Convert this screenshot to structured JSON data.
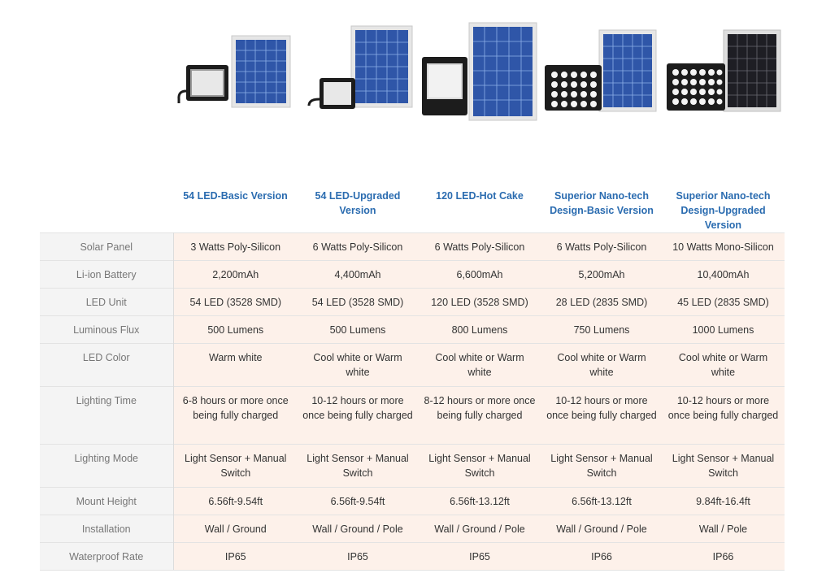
{
  "products": [
    {
      "name": "54-led-basic-product-image"
    },
    {
      "name": "54-led-upgraded-product-image"
    },
    {
      "name": "120-led-hot-cake-product-image"
    },
    {
      "name": "nano-tech-basic-product-image"
    },
    {
      "name": "nano-tech-upgraded-product-image"
    }
  ],
  "table": {
    "header_blank": "",
    "columns": [
      {
        "line1": "54 LED-Basic Version",
        "line2": ""
      },
      {
        "line1": "54 LED-Upgraded",
        "line2": "Version"
      },
      {
        "line1": "120 LED-Hot Cake",
        "line2": ""
      },
      {
        "line1": "Superior Nano-tech",
        "line2": "Design-Basic Version"
      },
      {
        "line1": "Superior Nano-tech",
        "line2": "Design-Upgraded Version"
      }
    ],
    "rows": [
      {
        "label": "Solar Panel",
        "cells": [
          "3 Watts Poly-Silicon",
          "6 Watts Poly-Silicon",
          "6 Watts Poly-Silicon",
          "6 Watts Poly-Silicon",
          "10 Watts Mono-Silicon"
        ]
      },
      {
        "label": "Li-ion Battery",
        "cells": [
          "2,200mAh",
          "4,400mAh",
          "6,600mAh",
          "5,200mAh",
          "10,400mAh"
        ]
      },
      {
        "label": "LED Unit",
        "cells": [
          "54 LED (3528 SMD)",
          "54 LED (3528 SMD)",
          "120 LED (3528 SMD)",
          "28 LED (2835 SMD)",
          "45 LED (2835 SMD)"
        ]
      },
      {
        "label": "Luminous Flux",
        "cells": [
          "500 Lumens",
          "500 Lumens",
          "800 Lumens",
          "750 Lumens",
          "1000 Lumens"
        ]
      },
      {
        "label": "LED Color",
        "cells": [
          "Warm white",
          "Cool white or Warm white",
          "Cool white or Warm white",
          "Cool white or Warm white",
          "Cool white or Warm white"
        ]
      },
      {
        "label": "Lighting Time",
        "cells": [
          "6-8 hours or more once being fully charged",
          "10-12 hours or more once being fully charged",
          "8-12 hours or more once being fully charged",
          "10-12 hours or more once being fully charged",
          "10-12 hours or more once being fully charged"
        ]
      },
      {
        "label": "Lighting Mode",
        "cells": [
          "Light Sensor + Manual Switch",
          "Light Sensor + Manual Switch",
          "Light Sensor + Manual Switch",
          "Light Sensor + Manual Switch",
          "Light Sensor + Manual Switch"
        ]
      },
      {
        "label": "Mount Height",
        "cells": [
          "6.56ft-9.54ft",
          "6.56ft-9.54ft",
          "6.56ft-13.12ft",
          "6.56ft-13.12ft",
          "9.84ft-16.4ft"
        ]
      },
      {
        "label": "Installation",
        "cells": [
          "Wall / Ground",
          "Wall / Ground / Pole",
          "Wall / Ground / Pole",
          "Wall / Ground / Pole",
          "Wall / Pole"
        ]
      },
      {
        "label": "Waterproof Rate",
        "cells": [
          "IP65",
          "IP65",
          "IP65",
          "IP66",
          "IP66"
        ]
      }
    ]
  },
  "colors": {
    "header_text": "#2b6cb0",
    "label_bg": "#f4f4f4",
    "cell_bg": "#fdf1ea",
    "panel_blue": "#2f56a8",
    "lamp_body": "#1c1c1c"
  }
}
